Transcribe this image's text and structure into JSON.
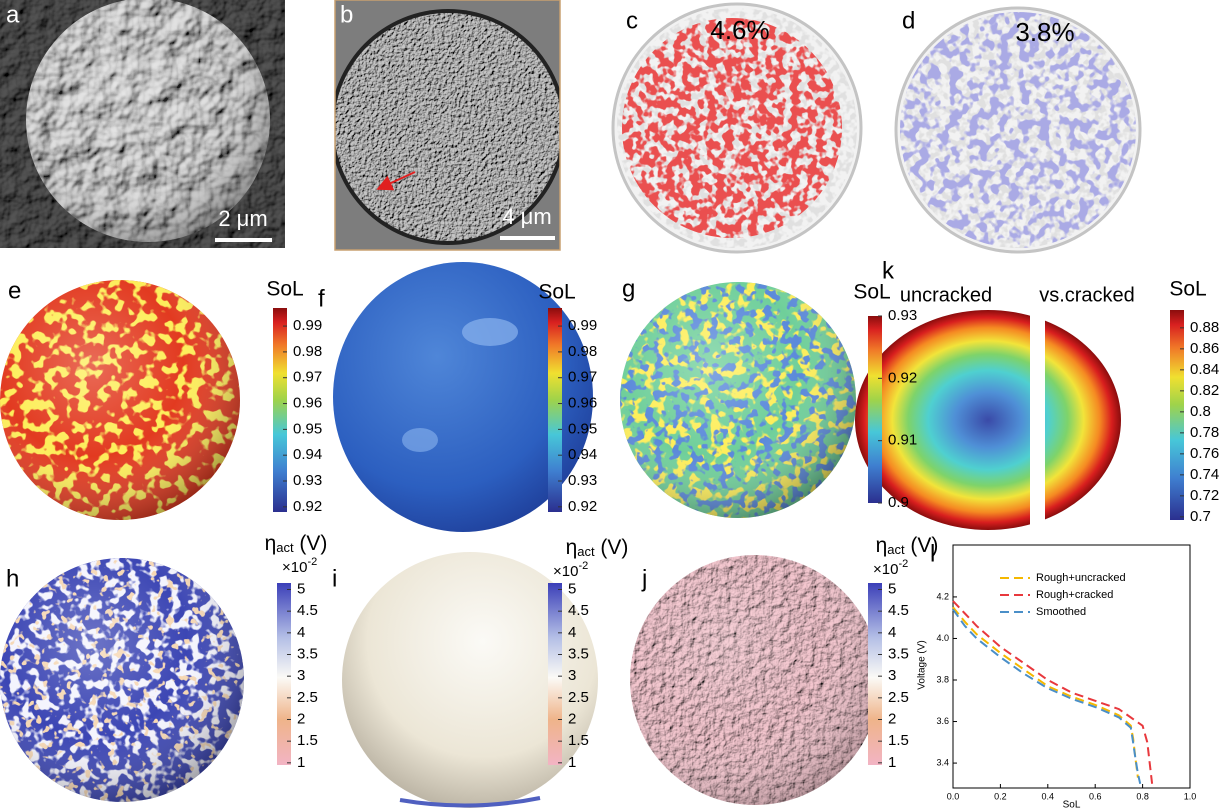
{
  "labels": [
    "a",
    "b",
    "c",
    "d",
    "e",
    "f",
    "g",
    "k",
    "h",
    "i",
    "j",
    "l"
  ],
  "scale_bars": [
    "2 μm",
    "4 μm"
  ],
  "fractions": [
    "4.6%",
    "3.8%"
  ],
  "k_titles": [
    "uncracked",
    "vs.cracked"
  ],
  "colorbars": [
    {
      "title": "SoL",
      "clim": [
        0.918,
        0.997
      ],
      "ticks": [
        0.92,
        0.93,
        0.94,
        0.95,
        0.96,
        0.97,
        0.98,
        0.99
      ]
    },
    {
      "title": "SoL",
      "clim": [
        0.918,
        0.997
      ],
      "ticks": [
        0.92,
        0.93,
        0.94,
        0.95,
        0.96,
        0.97,
        0.98,
        0.99
      ]
    },
    {
      "title": "SoL",
      "clim": [
        0.9,
        0.93
      ],
      "ticks": [
        0.9,
        0.91,
        0.92,
        0.93
      ]
    },
    {
      "title": "SoL",
      "clim": [
        0.697,
        0.897
      ],
      "ticks": [
        0.7,
        0.72,
        0.74,
        0.76,
        0.78,
        0.8,
        0.82,
        0.84,
        0.86,
        0.88
      ]
    },
    {
      "title": [
        "η",
        "act",
        " (V)"
      ],
      "multiplier": [
        "×10",
        "-2"
      ],
      "clim": [
        0.95,
        5.15
      ],
      "ticks": [
        1,
        1.5,
        2,
        2.5,
        3,
        3.5,
        4,
        4.5,
        5
      ]
    },
    {
      "title": [
        "η",
        "act",
        " (V)"
      ],
      "multiplier": [
        "×10",
        "-2"
      ],
      "clim": [
        0.95,
        5.15
      ],
      "ticks": [
        1,
        1.5,
        2,
        2.5,
        3,
        3.5,
        4,
        4.5,
        5
      ]
    },
    {
      "title": [
        "η",
        "act",
        " (V)"
      ],
      "multiplier": [
        "×10",
        "-2"
      ],
      "clim": [
        0.95,
        5.15
      ],
      "ticks": [
        1,
        1.5,
        2,
        2.5,
        3,
        3.5,
        4,
        4.5,
        5
      ]
    }
  ],
  "chart_data": {
    "type": "line",
    "xlabel": "SoL",
    "ylabel": "Voltage (V)",
    "xlim": [
      0,
      1
    ],
    "ylim": [
      3.28,
      4.45
    ],
    "xticks": [
      {
        "value": 0,
        "label": "0.0"
      },
      0.2,
      0.4,
      0.6,
      0.8,
      {
        "value": 1,
        "label": "1.0"
      }
    ],
    "yticks": [
      3.4,
      3.6,
      3.8,
      {
        "value": 4,
        "label": "4.0"
      },
      4.2
    ],
    "series": [
      {
        "name": "Rough+uncracked",
        "color": "#f5b800",
        "x": [
          0,
          0.05,
          0.1,
          0.2,
          0.3,
          0.4,
          0.5,
          0.6,
          0.7,
          0.75,
          0.76,
          0.77,
          0.78
        ],
        "values": [
          4.15,
          4.08,
          4.02,
          3.93,
          3.85,
          3.77,
          3.72,
          3.68,
          3.63,
          3.58,
          3.52,
          3.42,
          3.33
        ]
      },
      {
        "name": "Rough+cracked",
        "color": "#e8383d",
        "x": [
          0,
          0.05,
          0.1,
          0.2,
          0.3,
          0.4,
          0.5,
          0.6,
          0.7,
          0.8,
          0.82,
          0.83,
          0.84
        ],
        "values": [
          4.18,
          4.12,
          4.06,
          3.96,
          3.88,
          3.8,
          3.74,
          3.7,
          3.66,
          3.58,
          3.5,
          3.4,
          3.3
        ]
      },
      {
        "name": "Smoothed",
        "color": "#4a8fc8",
        "x": [
          0,
          0.05,
          0.1,
          0.2,
          0.3,
          0.4,
          0.5,
          0.6,
          0.7,
          0.75,
          0.76,
          0.77,
          0.78,
          0.79
        ],
        "values": [
          4.14,
          4.06,
          4.0,
          3.91,
          3.83,
          3.76,
          3.71,
          3.67,
          3.62,
          3.57,
          3.5,
          3.42,
          3.35,
          3.3
        ]
      }
    ]
  }
}
